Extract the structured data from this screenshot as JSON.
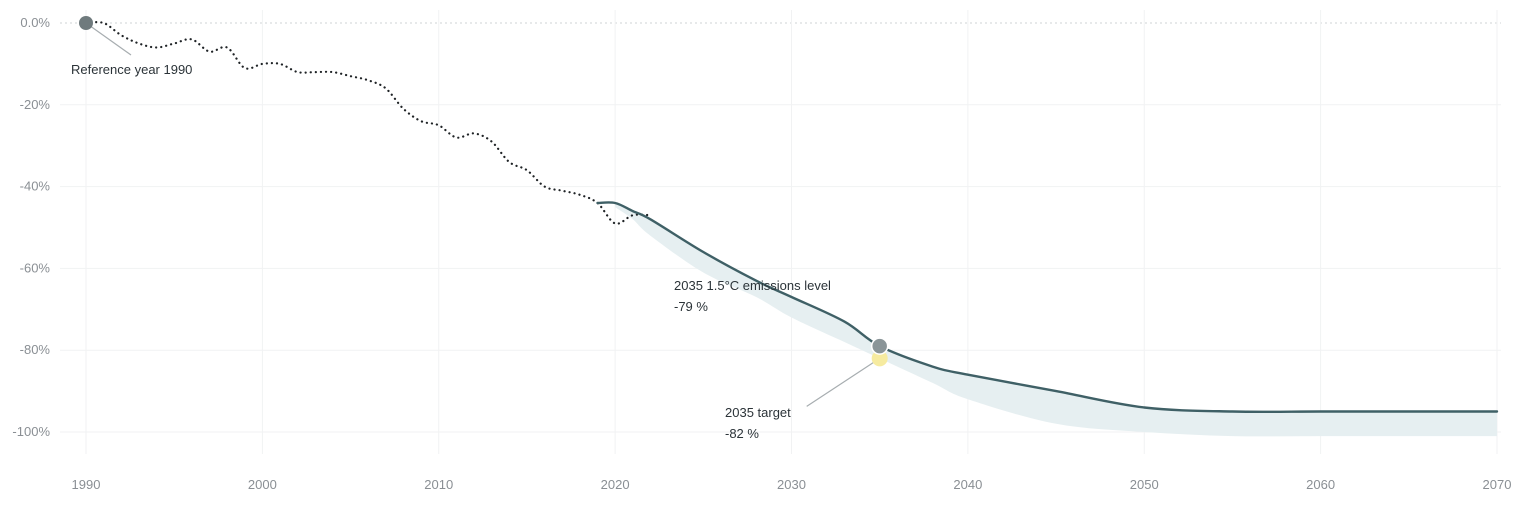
{
  "chart_data": {
    "type": "line",
    "x_range": [
      1990,
      2070
    ],
    "y_range": [
      -100,
      0
    ],
    "y_unit": "%",
    "x_ticks": [
      "1990",
      "2000",
      "2010",
      "2020",
      "2030",
      "2040",
      "2050",
      "2060",
      "2070"
    ],
    "y_ticks": [
      "0.0%",
      "-20%",
      "-40%",
      "-60%",
      "-80%",
      "-100%"
    ],
    "grid": true,
    "colors": {
      "historical": "#1f2326",
      "pathway": "#3f6066",
      "band": "#e6eff1",
      "reference_marker": "#6f7a7d",
      "level_marker": "#8a9598",
      "target_marker": "#f6eba0",
      "zero_line": "#cfd3d5",
      "grid": "#f1f2f3",
      "tick": "#8a8f94",
      "annotation": "#2b3338",
      "leader": "#a7adb0"
    },
    "series": [
      {
        "style": "dotted",
        "x": [
          1990,
          1991,
          1992,
          1993,
          1994,
          1995,
          1996,
          1997,
          1998,
          1999,
          2000,
          2001,
          2002,
          2003,
          2004,
          2005,
          2006,
          2007,
          2008,
          2009,
          2010,
          2011,
          2012,
          2013,
          2014,
          2015,
          2016,
          2017,
          2018,
          2019,
          2020,
          2021,
          2022
        ],
        "values": [
          0,
          0,
          -3,
          -5,
          -6,
          -5,
          -4,
          -7,
          -6,
          -11,
          -10,
          -10,
          -12,
          -12,
          -12,
          -13,
          -14,
          -16,
          -21,
          -24,
          -25,
          -28,
          -27,
          -29,
          -34,
          -36,
          -40,
          -41,
          -42,
          -44,
          -49,
          -47,
          -47
        ]
      },
      {
        "style": "solid",
        "x": [
          2019,
          2020,
          2021,
          2022,
          2025,
          2028,
          2030,
          2033,
          2035,
          2038,
          2040,
          2045,
          2050,
          2055,
          2060,
          2065,
          2070
        ],
        "values": [
          -44,
          -44,
          -46,
          -48,
          -56,
          -63,
          -67,
          -73,
          -79,
          -84,
          -86,
          -90,
          -94,
          -95,
          -95,
          -95,
          -95
        ]
      },
      {
        "style": "band",
        "x": [
          2020,
          2021,
          2022,
          2025,
          2028,
          2030,
          2033,
          2035,
          2038,
          2040,
          2045,
          2050,
          2055,
          2060,
          2065,
          2070
        ],
        "lower": [
          -45,
          -48,
          -52,
          -61,
          -67,
          -72,
          -78,
          -82,
          -88,
          -92,
          -98,
          -100,
          -101,
          -101,
          -101,
          -101
        ],
        "upper": [
          -44,
          -46,
          -48,
          -56,
          -63,
          -67,
          -73,
          -79,
          -84,
          -86,
          -90,
          -94,
          -95,
          -95,
          -95,
          -95
        ]
      }
    ],
    "markers": [
      {
        "role": "reference",
        "x": 1990,
        "y": 0
      },
      {
        "role": "level",
        "x": 2035,
        "y": -79
      },
      {
        "role": "target",
        "x": 2035,
        "y": -82
      }
    ],
    "annotations": [
      {
        "lines": [
          "Reference year 1990"
        ]
      },
      {
        "lines": [
          "2035 1.5°C emissions level",
          "-79 %"
        ]
      },
      {
        "lines": [
          "2035 target",
          "-82 %"
        ]
      }
    ]
  }
}
